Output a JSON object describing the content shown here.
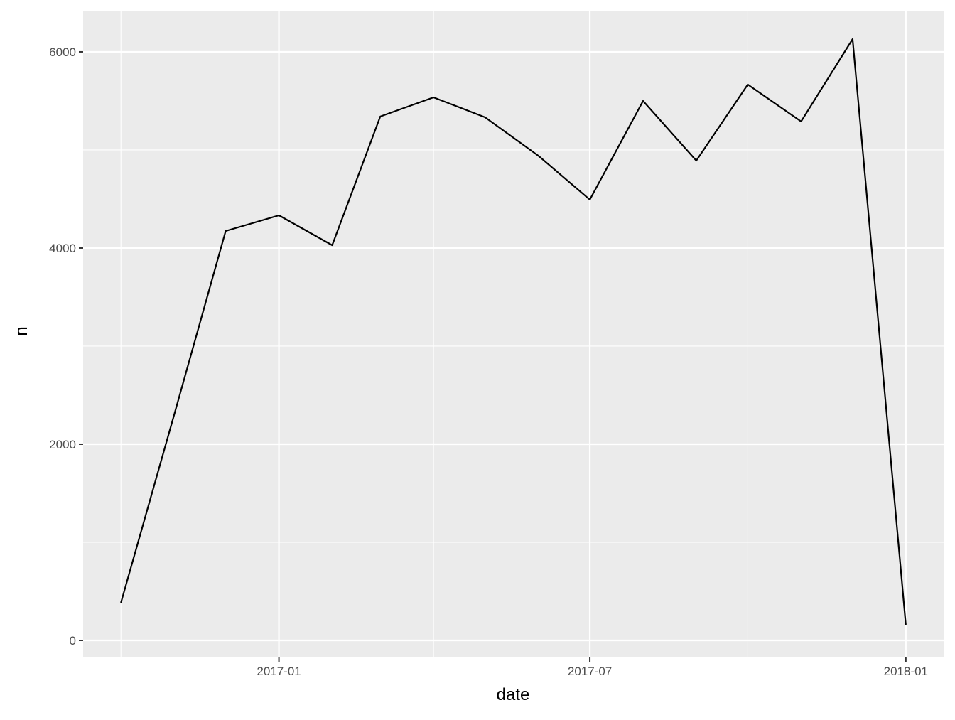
{
  "chart_data": {
    "type": "line",
    "title": "",
    "xlabel": "date",
    "ylabel": "n",
    "x": [
      "2016-10-01",
      "2016-11-01",
      "2016-12-01",
      "2017-01-01",
      "2017-02-01",
      "2017-03-01",
      "2017-04-01",
      "2017-05-01",
      "2017-06-01",
      "2017-07-01",
      "2017-08-01",
      "2017-09-01",
      "2017-10-01",
      "2017-11-01",
      "2017-12-01",
      "2018-01-01"
    ],
    "series": [
      {
        "values": [
          384,
          2300,
          4174,
          4333,
          4029,
          5341,
          5536,
          5333,
          4942,
          4493,
          5500,
          4891,
          5667,
          5290,
          6130,
          159
        ],
        "color": "#000000"
      }
    ],
    "xlim": [
      "2016-09-09",
      "2018-01-23"
    ],
    "ylim": [
      -174,
      6420
    ],
    "x_ticks": [
      {
        "date": "2017-01-01",
        "label": "2017-01"
      },
      {
        "date": "2017-07-01",
        "label": "2017-07"
      },
      {
        "date": "2018-01-01",
        "label": "2018-01"
      }
    ],
    "x_minor": [
      "2016-10-01",
      "2017-04-01",
      "2017-10-01"
    ],
    "y_ticks": [
      {
        "value": 0,
        "label": "0"
      },
      {
        "value": 2000,
        "label": "2000"
      },
      {
        "value": 4000,
        "label": "4000"
      },
      {
        "value": 6000,
        "label": "6000"
      }
    ],
    "y_minor": [
      1000,
      3000,
      5000
    ],
    "grid": true,
    "panel_color": "#EBEBEB",
    "grid_color": "#FFFFFF"
  }
}
